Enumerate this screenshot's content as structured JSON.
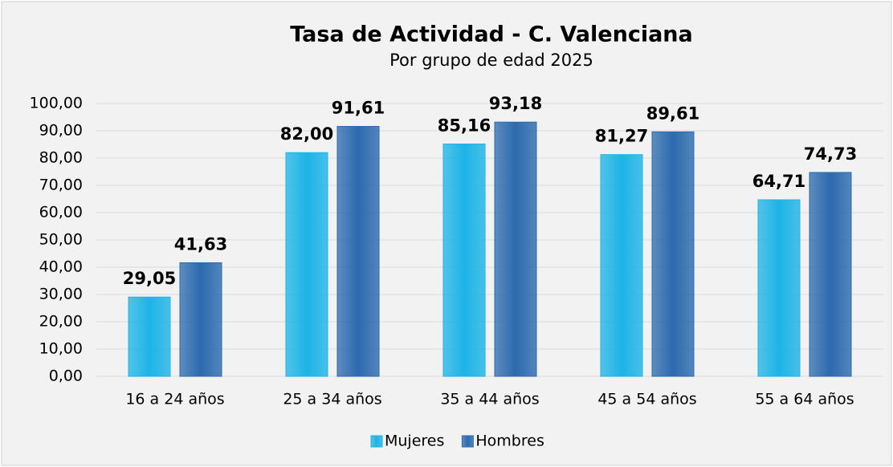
{
  "chart_data": {
    "type": "bar",
    "title": "Tasa de Actividad - C. Valenciana",
    "subtitle": "Por grupo de edad 2025",
    "categories": [
      "16 a 24 años",
      "25 a 34 años",
      "35 a 44 años",
      "45 a 54 años",
      "55 a 64 años"
    ],
    "series": [
      {
        "name": "Mujeres",
        "color": "#1cb4e6",
        "values": [
          29.05,
          82.0,
          85.16,
          81.27,
          64.71
        ],
        "value_labels": [
          "29,05",
          "82,00",
          "85,16",
          "81,27",
          "64,71"
        ]
      },
      {
        "name": "Hombres",
        "color": "#2c6aae",
        "values": [
          41.63,
          91.61,
          93.18,
          89.61,
          74.73
        ],
        "value_labels": [
          "41,63",
          "91,61",
          "93,18",
          "89,61",
          "74,73"
        ]
      }
    ],
    "ylim": [
      0,
      100
    ],
    "yticks": [
      {
        "value": 0,
        "label": "0,00"
      },
      {
        "value": 10,
        "label": "10,00"
      },
      {
        "value": 20,
        "label": "20,00"
      },
      {
        "value": 30,
        "label": "30,00"
      },
      {
        "value": 40,
        "label": "40,00"
      },
      {
        "value": 50,
        "label": "50,00"
      },
      {
        "value": 60,
        "label": "60,00"
      },
      {
        "value": 70,
        "label": "70,00"
      },
      {
        "value": 80,
        "label": "80,00"
      },
      {
        "value": 90,
        "label": "90,00"
      },
      {
        "value": 100,
        "label": "100,00"
      }
    ],
    "grid": true,
    "legend": "bottom"
  }
}
